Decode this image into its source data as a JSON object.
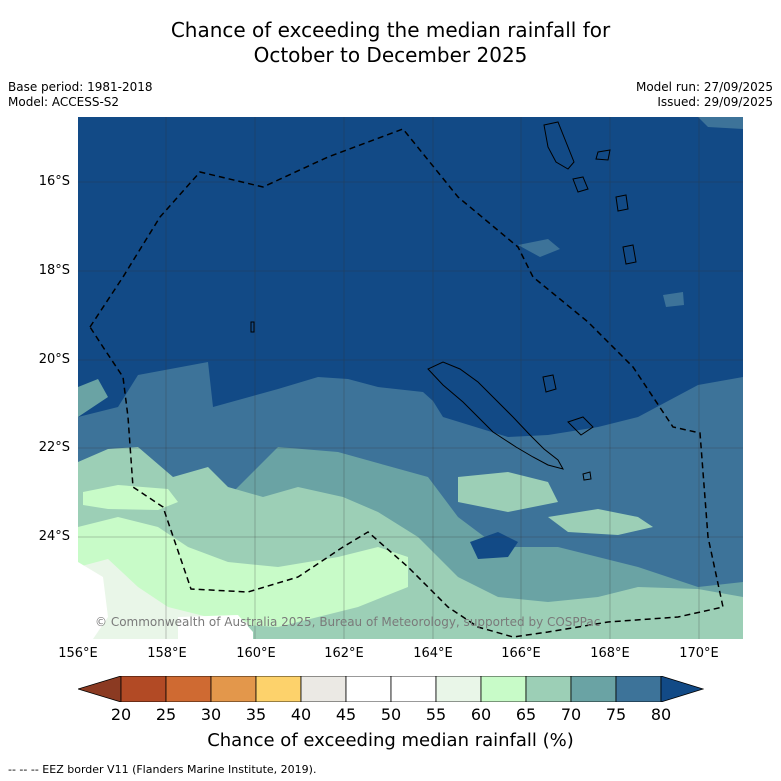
{
  "title": {
    "line1": "Chance of exceeding the median rainfall for",
    "line2": "October to December 2025"
  },
  "meta": {
    "base_period": "Base period: 1981-2018",
    "model": "Model: ACCESS-S2",
    "model_run": "Model run: 27/09/2025",
    "issued": "Issued: 29/09/2025"
  },
  "axes": {
    "lat_labels": [
      "16°S",
      "18°S",
      "20°S",
      "22°S",
      "24°S"
    ],
    "lon_labels": [
      "156°E",
      "158°E",
      "160°E",
      "162°E",
      "164°E",
      "166°E",
      "168°E",
      "170°E"
    ]
  },
  "copyright": "© Commonwealth of Australia 2025, Bureau of Meteorology, supported by COSPPac",
  "colorbar": {
    "ticks": [
      "20",
      "25",
      "30",
      "35",
      "40",
      "45",
      "50",
      "55",
      "60",
      "65",
      "70",
      "75",
      "80"
    ],
    "colors": [
      "#8b3a22",
      "#b24a25",
      "#cf6a32",
      "#e3974b",
      "#fdd26b",
      "#ebe9e4",
      "#ffffff",
      "#ffffff",
      "#e9f6e8",
      "#c8fbc8",
      "#9ccfb6",
      "#6aa3a4",
      "#3d7399",
      "#124a86"
    ],
    "label": "Chance of exceeding median rainfall (%)"
  },
  "legend": {
    "eez": "--  --  -- EEZ border V11 (Flanders Marine Institute, 2019)."
  }
}
